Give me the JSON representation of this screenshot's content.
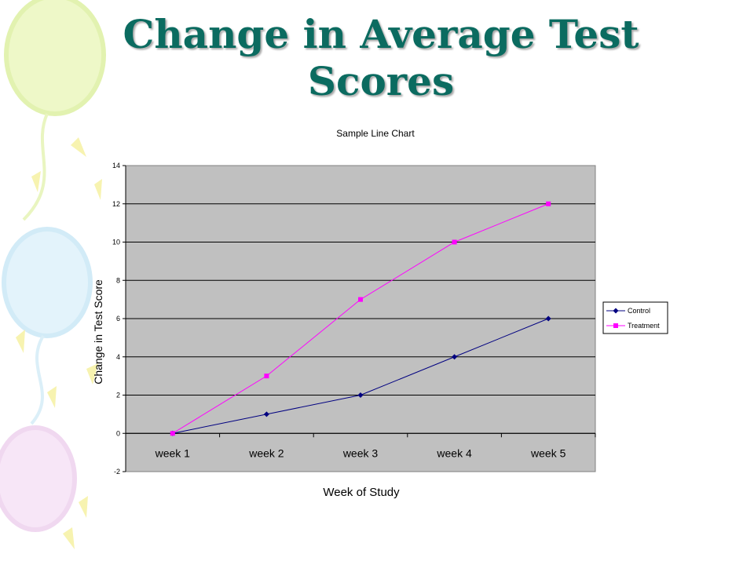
{
  "slide": {
    "title": "Change in Average Test Scores"
  },
  "chart_data": {
    "type": "line",
    "title": "Sample Line Chart",
    "xlabel": "Week of Study",
    "ylabel": "Change in Test Score",
    "categories": [
      "week 1",
      "week 2",
      "week 3",
      "week 4",
      "week 5"
    ],
    "ylim": [
      -2,
      14
    ],
    "yticks": [
      -2,
      0,
      2,
      4,
      6,
      8,
      10,
      12,
      14
    ],
    "grid": true,
    "plot_background": "#c0c0c0",
    "legend_position": "right",
    "series": [
      {
        "name": "Control",
        "values": [
          0,
          1,
          2,
          4,
          6
        ],
        "color": "#000080",
        "marker": "diamond"
      },
      {
        "name": "Treatment",
        "values": [
          0,
          3,
          7,
          10,
          12
        ],
        "color": "#ff00ff",
        "marker": "square"
      }
    ]
  },
  "colors": {
    "title": "#0b6b60"
  }
}
